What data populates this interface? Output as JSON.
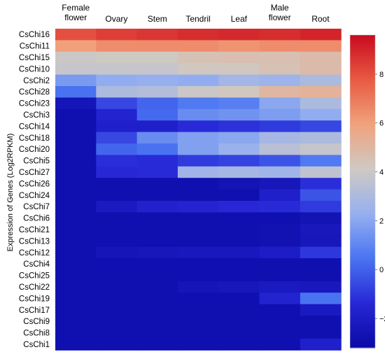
{
  "chart_data": {
    "type": "heatmap",
    "title": "",
    "xlabel": "",
    "ylabel": "Expression of Genes (Log2RPKM)",
    "columns": [
      [
        "Female",
        "flower"
      ],
      [
        "Ovary"
      ],
      [
        "Stem"
      ],
      [
        "Tendril"
      ],
      [
        "Leaf"
      ],
      [
        "Male",
        "flower"
      ],
      [
        "Root"
      ]
    ],
    "rows": [
      "CsChi16",
      "CsChi11",
      "CsChi15",
      "CsChi10",
      "CsChi2",
      "CsChi28",
      "CsChi23",
      "CsChi3",
      "CsChi14",
      "CsChi18",
      "CsChi20",
      "CsChi5",
      "CsChi27",
      "CsChi26",
      "CsChi24",
      "CsChi7",
      "CsChi6",
      "CsChi21",
      "CsChi13",
      "CsChi12",
      "CsChi4",
      "CsChi25",
      "CsChi22",
      "CsChi19",
      "CsChi17",
      "CsChi9",
      "CsChi8",
      "CsChi1"
    ],
    "values": [
      [
        8.0,
        8.4,
        8.6,
        8.8,
        8.9,
        8.8,
        9.0
      ],
      [
        6.0,
        6.5,
        6.5,
        6.5,
        6.3,
        6.5,
        6.5
      ],
      [
        4.0,
        4.1,
        4.1,
        4.5,
        4.6,
        4.6,
        4.8
      ],
      [
        3.8,
        3.8,
        3.8,
        4.2,
        4.2,
        4.5,
        4.8
      ],
      [
        1.6,
        2.2,
        2.3,
        2.2,
        2.7,
        2.5,
        3.0
      ],
      [
        0.4,
        3.0,
        3.2,
        4.0,
        4.2,
        5.0,
        5.2
      ],
      [
        -2.5,
        -0.6,
        0.1,
        0.6,
        0.8,
        2.0,
        3.0
      ],
      [
        -2.8,
        -1.6,
        0.2,
        1.2,
        1.4,
        1.7,
        2.2
      ],
      [
        -2.8,
        -1.8,
        -1.8,
        -1.3,
        -1.1,
        -0.9,
        -0.6
      ],
      [
        -2.8,
        -0.6,
        1.2,
        1.8,
        2.0,
        2.8,
        3.0
      ],
      [
        -2.8,
        0.1,
        0.4,
        1.8,
        2.4,
        3.4,
        3.8
      ],
      [
        -2.8,
        -1.2,
        -1.3,
        -0.9,
        -0.7,
        -0.3,
        0.6
      ],
      [
        -2.8,
        -1.4,
        -1.3,
        2.6,
        2.8,
        2.6,
        3.6
      ],
      [
        -2.8,
        -2.8,
        -2.8,
        -2.8,
        -2.6,
        -2.4,
        -1.2
      ],
      [
        -2.8,
        -2.8,
        -2.8,
        -2.8,
        -2.8,
        -1.8,
        -0.3
      ],
      [
        -2.8,
        -2.2,
        -1.7,
        -1.6,
        -1.4,
        -1.3,
        -0.9
      ],
      [
        -2.8,
        -2.8,
        -2.8,
        -2.8,
        -2.8,
        -2.8,
        -2.6
      ],
      [
        -2.8,
        -2.8,
        -2.8,
        -2.8,
        -2.8,
        -2.7,
        -2.3
      ],
      [
        -2.8,
        -2.8,
        -2.8,
        -2.8,
        -2.8,
        -2.7,
        -2.4
      ],
      [
        -2.8,
        -2.5,
        -2.4,
        -2.3,
        -2.3,
        -2.0,
        -1.0
      ],
      [
        -2.8,
        -2.8,
        -2.8,
        -2.8,
        -2.8,
        -2.8,
        -2.8
      ],
      [
        -2.8,
        -2.8,
        -2.8,
        -2.8,
        -2.8,
        -2.8,
        -2.8
      ],
      [
        -2.8,
        -2.8,
        -2.8,
        -2.5,
        -2.4,
        -2.2,
        -2.3
      ],
      [
        -2.8,
        -2.8,
        -2.8,
        -2.8,
        -2.8,
        -1.6,
        0.4
      ],
      [
        -2.8,
        -2.8,
        -2.8,
        -2.8,
        -2.8,
        -2.8,
        -2.2
      ],
      [
        -2.8,
        -2.8,
        -2.8,
        -2.8,
        -2.8,
        -2.8,
        -2.8
      ],
      [
        -2.8,
        -2.8,
        -2.8,
        -2.8,
        -2.8,
        -2.8,
        -2.8
      ],
      [
        -2.8,
        -2.8,
        -2.8,
        -2.8,
        -2.8,
        -2.8,
        -1.8
      ]
    ],
    "colorbar": {
      "range": [
        -3.2,
        9.6
      ],
      "ticks": [
        -2,
        0,
        2,
        4,
        6,
        8
      ],
      "colors": [
        "#0a0aa5",
        "#2727d6",
        "#4a74f2",
        "#96b0ef",
        "#cfc9c4",
        "#f0a27c",
        "#e85a43",
        "#c80a1f"
      ]
    }
  }
}
